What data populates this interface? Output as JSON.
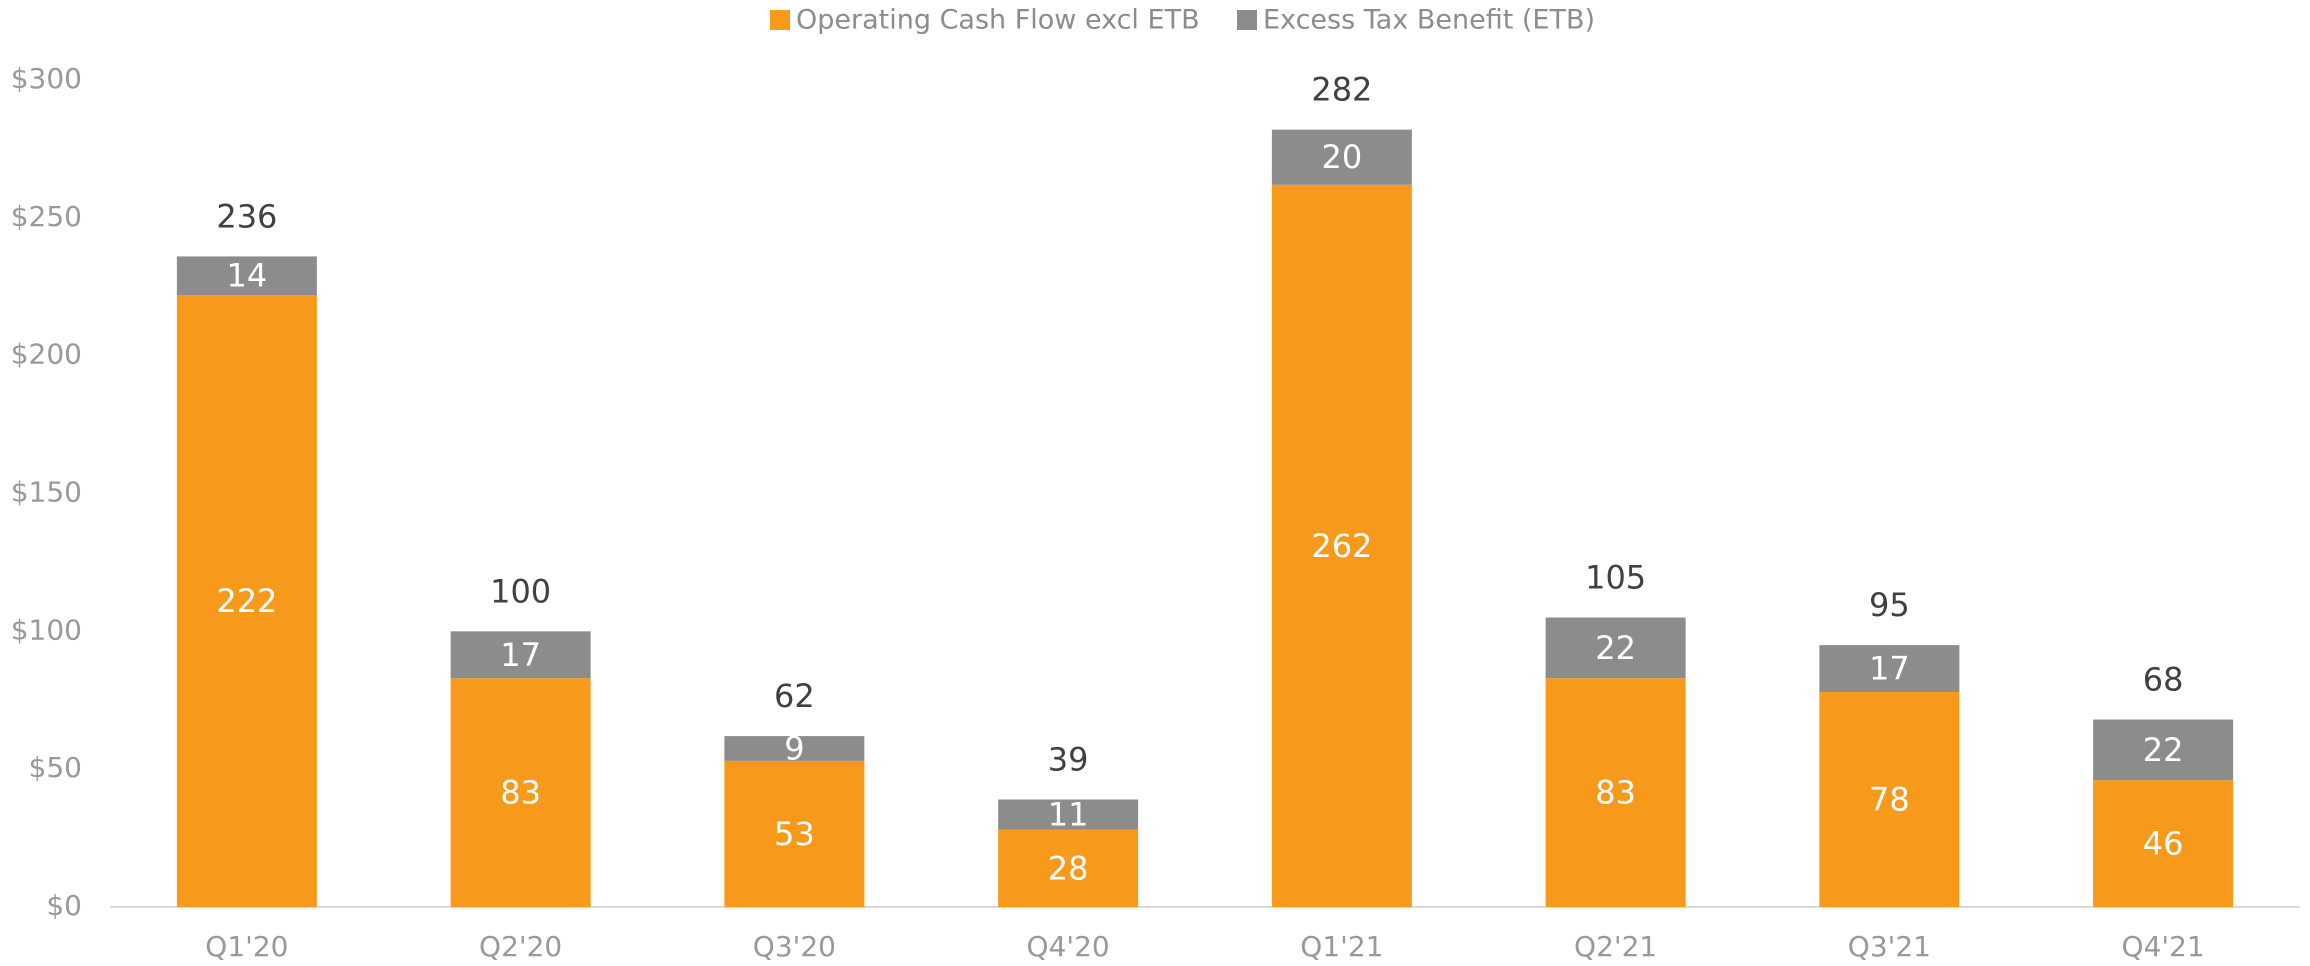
{
  "chart_data": {
    "type": "stacked_bar",
    "categories": [
      "Q1'20",
      "Q2'20",
      "Q3'20",
      "Q4'20",
      "Q1'21",
      "Q2'21",
      "Q3'21",
      "Q4'21"
    ],
    "series": [
      {
        "name": "Operating Cash Flow excl ETB",
        "color": "#f79a1c",
        "values": [
          222,
          83,
          53,
          28,
          262,
          83,
          78,
          46
        ]
      },
      {
        "name": "Excess Tax Benefit (ETB)",
        "color": "#8c8c8c",
        "values": [
          14,
          17,
          9,
          11,
          20,
          22,
          17,
          22
        ]
      }
    ],
    "totals": [
      236,
      100,
      62,
      39,
      282,
      105,
      95,
      68
    ],
    "ylim": [
      0,
      300
    ],
    "yticks": [
      {
        "value": 0,
        "label": "$0"
      },
      {
        "value": 50,
        "label": "$50"
      },
      {
        "value": 100,
        "label": "$100"
      },
      {
        "value": 150,
        "label": "$150"
      },
      {
        "value": 200,
        "label": "$200"
      },
      {
        "value": 250,
        "label": "$250"
      },
      {
        "value": 300,
        "label": "$300"
      }
    ],
    "grid": false,
    "legend": "top"
  }
}
